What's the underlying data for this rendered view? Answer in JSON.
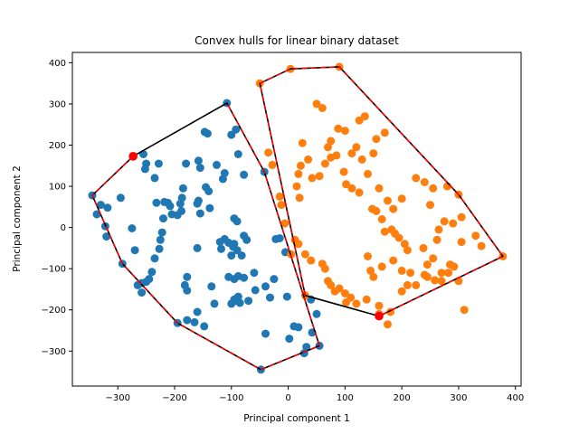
{
  "chart_data": {
    "type": "scatter",
    "title": "Convex hulls for linear binary dataset",
    "xlabel": "Principal component 1",
    "ylabel": "Principal component 2",
    "xlim": [
      -380,
      410
    ],
    "ylim": [
      -385,
      425
    ],
    "xticks": [
      -300,
      -200,
      -100,
      0,
      100,
      200,
      300,
      400
    ],
    "yticks": [
      -300,
      -200,
      -100,
      0,
      100,
      200,
      300,
      400
    ],
    "grid": false,
    "colors": {
      "series_0": "#1f77b4",
      "series_1": "#ff7f0e",
      "hull": "#000000",
      "overlay": "#ff0000",
      "marker": "#ff0000"
    },
    "series": [
      {
        "points": [
          [
            -345,
            78
          ],
          [
            -337,
            32
          ],
          [
            -330,
            55
          ],
          [
            -318,
            48
          ],
          [
            -322,
            3
          ],
          [
            -320,
            -22
          ],
          [
            -295,
            72
          ],
          [
            -292,
            -88
          ],
          [
            -275,
            -2
          ],
          [
            -270,
            -55
          ],
          [
            -255,
            178
          ],
          [
            -252,
            142
          ],
          [
            -250,
            155
          ],
          [
            -235,
            120
          ],
          [
            -232,
            60
          ],
          [
            -228,
            155
          ],
          [
            -180,
            155
          ],
          [
            -158,
            162
          ],
          [
            -155,
            145
          ],
          [
            -145,
            98
          ],
          [
            -140,
            88
          ],
          [
            -138,
            47
          ],
          [
            -126,
            152
          ],
          [
            -115,
            118
          ],
          [
            -108,
            302
          ],
          [
            -100,
            225
          ],
          [
            -92,
            238
          ],
          [
            -88,
            178
          ],
          [
            -78,
            128
          ],
          [
            -112,
            132
          ],
          [
            -160,
            -50
          ],
          [
            -142,
            228
          ],
          [
            -147,
            232
          ],
          [
            -158,
            65
          ],
          [
            -155,
            34
          ],
          [
            -160,
            58
          ],
          [
            -185,
            95
          ],
          [
            -187,
            72
          ],
          [
            -190,
            58
          ],
          [
            -188,
            40
          ],
          [
            -195,
            30
          ],
          [
            -205,
            32
          ],
          [
            -208,
            52
          ],
          [
            -212,
            60
          ],
          [
            -218,
            62
          ],
          [
            -220,
            22
          ],
          [
            -222,
            -12
          ],
          [
            -225,
            -30
          ],
          [
            -227,
            -52
          ],
          [
            -235,
            -75
          ],
          [
            -240,
            -108
          ],
          [
            -245,
            -125
          ],
          [
            -250,
            -132
          ],
          [
            -258,
            -158
          ],
          [
            -258,
            -135
          ],
          [
            -265,
            -140
          ],
          [
            -195,
            -232
          ],
          [
            -178,
            -225
          ],
          [
            -165,
            -230
          ],
          [
            -148,
            -240
          ],
          [
            -160,
            -205
          ],
          [
            -178,
            -120
          ],
          [
            -182,
            -140
          ],
          [
            -178,
            -153
          ],
          [
            -135,
            -143
          ],
          [
            -120,
            -35
          ],
          [
            -118,
            -52
          ],
          [
            -112,
            -28
          ],
          [
            -105,
            -37
          ],
          [
            -97,
            -47
          ],
          [
            -95,
            -40
          ],
          [
            -90,
            -55
          ],
          [
            -82,
            -68
          ],
          [
            -73,
            -30
          ],
          [
            -78,
            -20
          ],
          [
            -95,
            22
          ],
          [
            -90,
            15
          ],
          [
            -105,
            -120
          ],
          [
            -95,
            -125
          ],
          [
            -88,
            -118
          ],
          [
            -78,
            -122
          ],
          [
            -88,
            -168
          ],
          [
            -95,
            -175
          ],
          [
            -100,
            -185
          ],
          [
            -70,
            -178
          ],
          [
            -58,
            -152
          ],
          [
            -60,
            -110
          ],
          [
            -40,
            -143
          ],
          [
            -32,
            -170
          ],
          [
            -25,
            -125
          ],
          [
            -22,
            -28
          ],
          [
            -15,
            -26
          ],
          [
            -2,
            -168
          ],
          [
            2,
            -270
          ],
          [
            10,
            -240
          ],
          [
            18,
            -242
          ],
          [
            28,
            -305
          ],
          [
            32,
            -290
          ],
          [
            42,
            -255
          ],
          [
            50,
            -210
          ],
          [
            40,
            -175
          ],
          [
            -40,
            -258
          ],
          [
            -48,
            -345
          ],
          [
            -42,
            135
          ],
          [
            -100,
            -68
          ],
          [
            -130,
            -185
          ],
          [
            -85,
            -183
          ],
          [
            -92,
            -178
          ],
          [
            55,
            -287
          ],
          [
            -5,
            -60
          ]
        ]
      },
      {
        "points": [
          [
            -50,
            350
          ],
          [
            4,
            385
          ],
          [
            90,
            390
          ],
          [
            30,
            -165
          ],
          [
            102,
            -182
          ],
          [
            160,
            -210
          ],
          [
            175,
            -235
          ],
          [
            300,
            -130
          ],
          [
            310,
            -200
          ],
          [
            300,
            80
          ],
          [
            255,
            95
          ],
          [
            280,
            100
          ],
          [
            275,
            15
          ],
          [
            330,
            -20
          ],
          [
            378,
            -70
          ],
          [
            340,
            -45
          ],
          [
            305,
            -35
          ],
          [
            292,
            -95
          ],
          [
            285,
            -90
          ],
          [
            282,
            -110
          ],
          [
            270,
            -130
          ],
          [
            245,
            -90
          ],
          [
            238,
            -50
          ],
          [
            210,
            -55
          ],
          [
            205,
            -40
          ],
          [
            195,
            -25
          ],
          [
            188,
            -15
          ],
          [
            182,
            -5
          ],
          [
            170,
            -10
          ],
          [
            165,
            20
          ],
          [
            155,
            40
          ],
          [
            148,
            45
          ],
          [
            125,
            85
          ],
          [
            112,
            95
          ],
          [
            102,
            105
          ],
          [
            98,
            135
          ],
          [
            85,
            175
          ],
          [
            75,
            170
          ],
          [
            65,
            155
          ],
          [
            55,
            125
          ],
          [
            42,
            120
          ],
          [
            35,
            165
          ],
          [
            25,
            205
          ],
          [
            22,
            150
          ],
          [
            18,
            130
          ],
          [
            15,
            100
          ],
          [
            20,
            72
          ],
          [
            -35,
            182
          ],
          [
            -28,
            152
          ],
          [
            -15,
            75
          ],
          [
            -12,
            55
          ],
          [
            -6,
            10
          ],
          [
            5,
            -65
          ],
          [
            12,
            -30
          ],
          [
            18,
            -40
          ],
          [
            30,
            -65
          ],
          [
            40,
            -80
          ],
          [
            60,
            -88
          ],
          [
            65,
            -100
          ],
          [
            70,
            -130
          ],
          [
            75,
            -140
          ],
          [
            82,
            -155
          ],
          [
            90,
            -148
          ],
          [
            100,
            -160
          ],
          [
            110,
            -170
          ],
          [
            120,
            -185
          ],
          [
            138,
            -175
          ],
          [
            160,
            -190
          ],
          [
            180,
            -205
          ],
          [
            200,
            -155
          ],
          [
            210,
            -140
          ],
          [
            225,
            -140
          ],
          [
            245,
            -120
          ],
          [
            258,
            -128
          ],
          [
            270,
            -110
          ],
          [
            140,
            -70
          ],
          [
            145,
            -105
          ],
          [
            150,
            -120
          ],
          [
            165,
            -95
          ],
          [
            185,
            -80
          ],
          [
            200,
            -105
          ],
          [
            215,
            -110
          ],
          [
            240,
            -115
          ],
          [
            255,
            -75
          ],
          [
            262,
            -30
          ],
          [
            265,
            -5
          ],
          [
            290,
            10
          ],
          [
            305,
            25
          ],
          [
            250,
            55
          ],
          [
            240,
            110
          ],
          [
            225,
            120
          ],
          [
            200,
            70
          ],
          [
            185,
            45
          ],
          [
            175,
            65
          ],
          [
            160,
            95
          ],
          [
            140,
            130
          ],
          [
            130,
            165
          ],
          [
            120,
            195
          ],
          [
            112,
            180
          ],
          [
            100,
            235
          ],
          [
            88,
            240
          ],
          [
            75,
            210
          ],
          [
            70,
            195
          ],
          [
            60,
            290
          ],
          [
            50,
            300
          ],
          [
            125,
            260
          ],
          [
            135,
            270
          ],
          [
            155,
            215
          ],
          [
            170,
            230
          ],
          [
            150,
            180
          ]
        ]
      }
    ],
    "hulls": [
      {
        "vertices": [
          [
            -108,
            302
          ],
          [
            -42,
            135
          ],
          [
            55,
            -287
          ],
          [
            -48,
            -345
          ],
          [
            -195,
            -232
          ],
          [
            -292,
            -88
          ],
          [
            -345,
            78
          ],
          [
            -273,
            173
          ]
        ]
      },
      {
        "vertices": [
          [
            -50,
            350
          ],
          [
            4,
            385
          ],
          [
            90,
            390
          ],
          [
            300,
            80
          ],
          [
            378,
            -70
          ],
          [
            160,
            -215
          ],
          [
            30,
            -165
          ]
        ]
      }
    ],
    "overlay_paths": [
      {
        "vertices": [
          [
            -273,
            173
          ],
          [
            -345,
            78
          ],
          [
            -292,
            -88
          ],
          [
            -195,
            -232
          ],
          [
            -48,
            -345
          ],
          [
            55,
            -287
          ],
          [
            -42,
            135
          ],
          [
            -108,
            302
          ]
        ]
      },
      {
        "vertices": [
          [
            30,
            -165
          ],
          [
            -50,
            350
          ],
          [
            4,
            385
          ],
          [
            90,
            390
          ],
          [
            300,
            80
          ],
          [
            378,
            -70
          ],
          [
            160,
            -215
          ]
        ]
      }
    ],
    "markers": [
      [
        -273,
        173
      ],
      [
        160,
        -215
      ]
    ]
  }
}
